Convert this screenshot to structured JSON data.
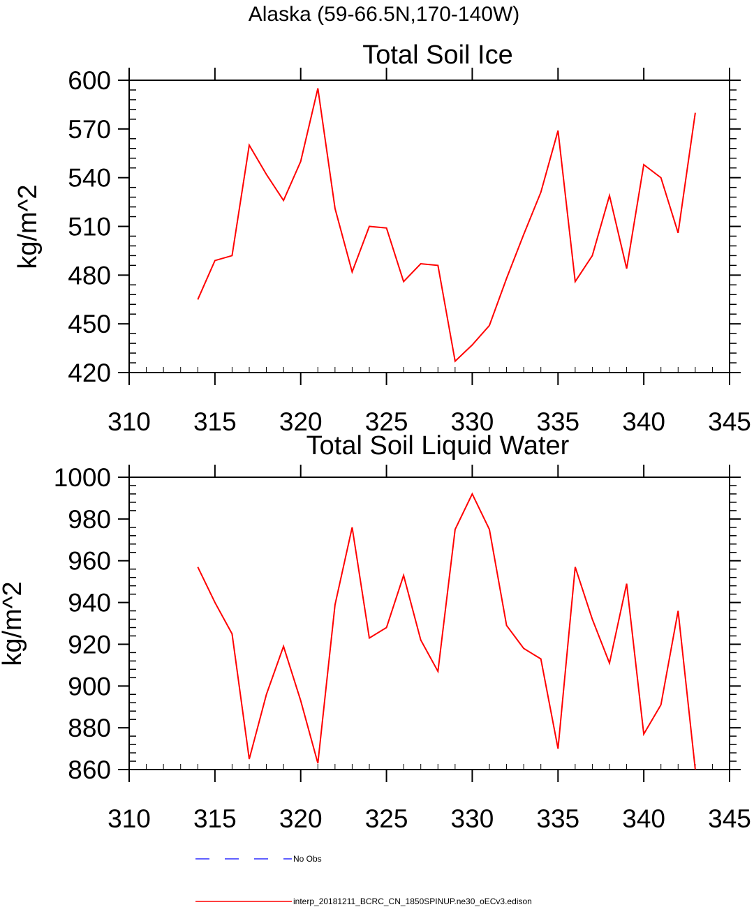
{
  "figure": {
    "supertitle": "Alaska (59-66.5N,170-140W)"
  },
  "colors": {
    "model_line": "#ff0000",
    "obs_line": "#0000ff",
    "axes": "#000000",
    "background": "#ffffff"
  },
  "chart_data": [
    {
      "type": "line",
      "title": "Total Soil Ice",
      "xlabel": "",
      "ylabel": "kg/m^2",
      "xlim": [
        310,
        345
      ],
      "ylim": [
        420,
        600
      ],
      "xticks": [
        310,
        315,
        320,
        325,
        330,
        335,
        340,
        345
      ],
      "yticks": [
        420,
        450,
        480,
        510,
        540,
        570,
        600
      ],
      "grid": false,
      "x": [
        314,
        315,
        316,
        317,
        318,
        319,
        320,
        321,
        322,
        323,
        324,
        325,
        326,
        327,
        328,
        329,
        330,
        331,
        332,
        333,
        334,
        335,
        336,
        337,
        338,
        339,
        340,
        341,
        342,
        343
      ],
      "series": [
        {
          "name": "interp_20181211_BCRC_CN_1850SPINUP.ne30_oECv3.edison",
          "color": "#ff0000",
          "values": [
            465,
            489,
            492,
            560,
            542,
            526,
            550,
            595,
            521,
            482,
            510,
            509,
            476,
            487,
            486,
            427,
            437,
            449,
            478,
            505,
            531,
            569,
            476,
            492,
            529,
            484,
            548,
            540,
            506,
            580
          ]
        }
      ]
    },
    {
      "type": "line",
      "title": "Total Soil Liquid Water",
      "xlabel": "",
      "ylabel": "kg/m^2",
      "xlim": [
        310,
        345
      ],
      "ylim": [
        860,
        1000
      ],
      "xticks": [
        310,
        315,
        320,
        325,
        330,
        335,
        340,
        345
      ],
      "yticks": [
        860,
        880,
        900,
        920,
        940,
        960,
        980,
        1000
      ],
      "grid": false,
      "x": [
        314,
        315,
        316,
        317,
        318,
        319,
        320,
        321,
        322,
        323,
        324,
        325,
        326,
        327,
        328,
        329,
        330,
        331,
        332,
        333,
        334,
        335,
        336,
        337,
        338,
        339,
        340,
        341,
        342,
        343
      ],
      "series": [
        {
          "name": "interp_20181211_BCRC_CN_1850SPINUP.ne30_oECv3.edison",
          "color": "#ff0000",
          "values": [
            957,
            940,
            925,
            865,
            896,
            919,
            893,
            863,
            939,
            976,
            923,
            928,
            953,
            922,
            907,
            975,
            992,
            975,
            929,
            918,
            913,
            870,
            957,
            932,
            911,
            949,
            877,
            891,
            936,
            860
          ]
        }
      ]
    }
  ],
  "legend": {
    "placement": "bottom",
    "entries": [
      {
        "label": "No Obs",
        "color": "#0000ff",
        "style": "dashed"
      },
      {
        "label": "interp_20181211_BCRC_CN_1850SPINUP.ne30_oECv3.edison",
        "color": "#ff0000",
        "style": "solid"
      }
    ]
  }
}
